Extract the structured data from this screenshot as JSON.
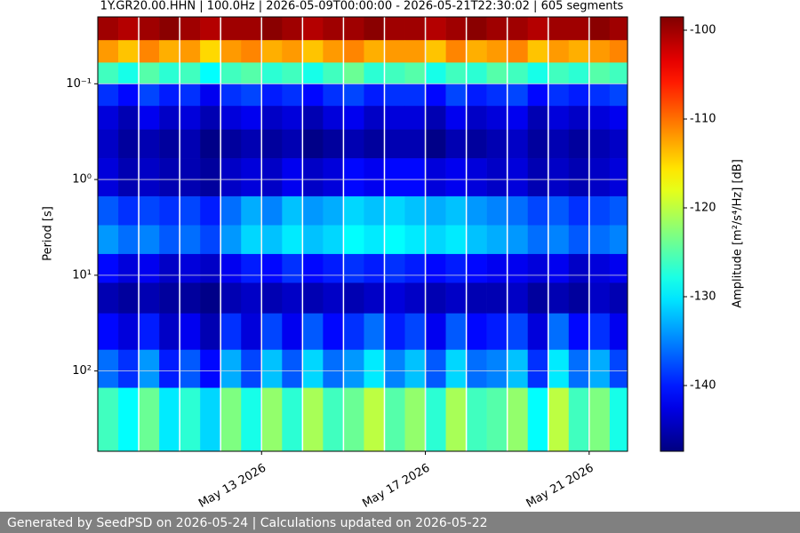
{
  "chart_data": {
    "type": "heatmap",
    "title": "1Y.GR20.00.HHN | 100.0Hz | 2026-05-09T00:00:00 - 2026-05-21T22:30:02 | 605 segments",
    "y_label": "Period [s]",
    "colorbar_label": "Amplitude [m²/s⁴/Hz] [dB]",
    "colormap": "jet",
    "y_log": true,
    "y_inverted": true,
    "grid": true,
    "xlim": [
      "2026-05-09T00:00",
      "2026-05-21T22:30"
    ],
    "xticks": [
      {
        "value": "2026-05-13T00:00",
        "label": "May 13 2026"
      },
      {
        "value": "2026-05-17T00:00",
        "label": "May 17 2026"
      },
      {
        "value": "2026-05-21T00:00",
        "label": "May 21 2026"
      }
    ],
    "ylim": [
      0.02,
      690
    ],
    "yticks": [
      {
        "value": 0.1,
        "label": "10⁻¹"
      },
      {
        "value": 1,
        "label": "10⁰"
      },
      {
        "value": 10,
        "label": "10¹"
      },
      {
        "value": 100,
        "label": "10²"
      }
    ],
    "clim": [
      -147.4,
      -98.5
    ],
    "cticks": [
      -100,
      -110,
      -120,
      -130,
      -140
    ],
    "x": [
      "2026-05-09T00:00",
      "2026-05-09T12:00",
      "2026-05-10T00:00",
      "2026-05-10T12:00",
      "2026-05-11T00:00",
      "2026-05-11T12:00",
      "2026-05-12T00:00",
      "2026-05-12T12:00",
      "2026-05-13T00:00",
      "2026-05-13T12:00",
      "2026-05-14T00:00",
      "2026-05-14T12:00",
      "2026-05-15T00:00",
      "2026-05-15T12:00",
      "2026-05-16T00:00",
      "2026-05-16T12:00",
      "2026-05-17T00:00",
      "2026-05-17T12:00",
      "2026-05-18T00:00",
      "2026-05-18T12:00",
      "2026-05-19T00:00",
      "2026-05-19T12:00",
      "2026-05-20T00:00",
      "2026-05-20T12:00",
      "2026-05-21T00:00",
      "2026-05-21T12:00"
    ],
    "yedges": [
      0.02,
      0.035,
      0.06,
      0.1,
      0.17,
      0.3,
      0.6,
      1.5,
      3,
      6,
      12,
      25,
      60,
      150,
      690
    ],
    "z": [
      [
        -100,
        -101,
        -100,
        -99,
        -100,
        -101,
        -100,
        -100,
        -99,
        -100,
        -101,
        -100,
        -100,
        -99,
        -100,
        -100,
        -101,
        -100,
        -99,
        -100,
        -100,
        -101,
        -100,
        -100,
        -99,
        -100
      ],
      [
        -112,
        -114,
        -111,
        -113,
        -112,
        -115,
        -112,
        -111,
        -113,
        -112,
        -114,
        -112,
        -111,
        -113,
        -112,
        -112,
        -114,
        -111,
        -113,
        -112,
        -111,
        -114,
        -112,
        -113,
        -112,
        -111
      ],
      [
        -126,
        -128,
        -125,
        -127,
        -126,
        -129,
        -126,
        -125,
        -127,
        -126,
        -128,
        -126,
        -124,
        -127,
        -126,
        -125,
        -128,
        -126,
        -127,
        -125,
        -126,
        -128,
        -126,
        -127,
        -125,
        -126
      ],
      [
        -139,
        -141,
        -138,
        -140,
        -139,
        -142,
        -139,
        -138,
        -140,
        -139,
        -141,
        -139,
        -138,
        -140,
        -139,
        -139,
        -141,
        -138,
        -140,
        -139,
        -138,
        -141,
        -139,
        -140,
        -139,
        -138
      ],
      [
        -143,
        -145,
        -142,
        -144,
        -143,
        -145,
        -143,
        -142,
        -144,
        -143,
        -145,
        -143,
        -142,
        -144,
        -143,
        -143,
        -145,
        -142,
        -144,
        -143,
        -142,
        -145,
        -143,
        -144,
        -143,
        -142
      ],
      [
        -144,
        -146,
        -145,
        -146,
        -145,
        -147,
        -146,
        -145,
        -146,
        -145,
        -147,
        -146,
        -145,
        -146,
        -145,
        -145,
        -147,
        -145,
        -146,
        -145,
        -144,
        -146,
        -145,
        -146,
        -145,
        -144
      ],
      [
        -143,
        -145,
        -144,
        -145,
        -145,
        -146,
        -144,
        -143,
        -144,
        -142,
        -144,
        -143,
        -141,
        -142,
        -141,
        -141,
        -143,
        -142,
        -143,
        -144,
        -143,
        -145,
        -144,
        -145,
        -144,
        -143
      ],
      [
        -137,
        -139,
        -138,
        -139,
        -138,
        -140,
        -136,
        -133,
        -135,
        -132,
        -134,
        -133,
        -131,
        -132,
        -131,
        -132,
        -133,
        -132,
        -134,
        -135,
        -136,
        -138,
        -137,
        -139,
        -138,
        -137
      ],
      [
        -134,
        -136,
        -135,
        -137,
        -136,
        -138,
        -134,
        -131,
        -132,
        -130,
        -132,
        -131,
        -129,
        -130,
        -129,
        -130,
        -131,
        -130,
        -132,
        -133,
        -134,
        -136,
        -135,
        -137,
        -136,
        -135
      ],
      [
        -141,
        -143,
        -142,
        -144,
        -143,
        -144,
        -142,
        -140,
        -141,
        -139,
        -141,
        -140,
        -139,
        -140,
        -139,
        -140,
        -141,
        -140,
        -141,
        -142,
        -142,
        -143,
        -142,
        -144,
        -143,
        -142
      ],
      [
        -145,
        -146,
        -145,
        -146,
        -146,
        -147,
        -145,
        -144,
        -145,
        -144,
        -145,
        -144,
        -145,
        -144,
        -143,
        -144,
        -145,
        -144,
        -145,
        -145,
        -144,
        -146,
        -145,
        -146,
        -144,
        -145
      ],
      [
        -141,
        -143,
        -140,
        -144,
        -142,
        -145,
        -139,
        -143,
        -138,
        -142,
        -137,
        -141,
        -139,
        -136,
        -140,
        -138,
        -142,
        -137,
        -141,
        -140,
        -138,
        -143,
        -136,
        -141,
        -139,
        -142
      ],
      [
        -136,
        -139,
        -134,
        -140,
        -137,
        -141,
        -133,
        -138,
        -132,
        -137,
        -131,
        -136,
        -134,
        -130,
        -135,
        -132,
        -137,
        -131,
        -136,
        -135,
        -132,
        -139,
        -130,
        -136,
        -133,
        -138
      ],
      [
        -126,
        -129,
        -124,
        -130,
        -127,
        -131,
        -123,
        -128,
        -122,
        -127,
        -121,
        -126,
        -124,
        -120,
        -125,
        -122,
        -127,
        -121,
        -126,
        -125,
        -122,
        -129,
        -120,
        -126,
        -123,
        -128
      ]
    ]
  },
  "footer": "Generated by SeedPSD on 2026-05-24 | Calculations updated on 2026-05-22"
}
